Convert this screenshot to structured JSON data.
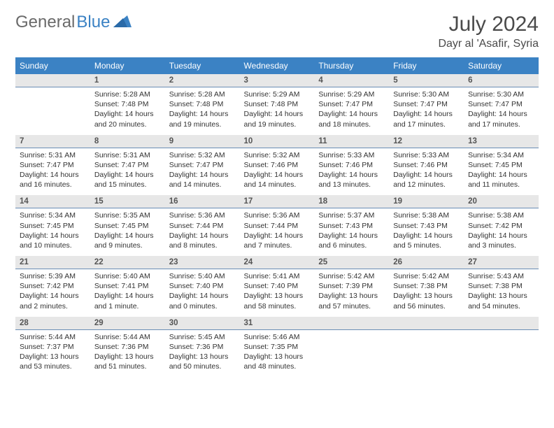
{
  "logo": {
    "text1": "General",
    "text2": "Blue"
  },
  "title": "July 2024",
  "location": "Dayr al 'Asafir, Syria",
  "colors": {
    "header_bg": "#3b82c4",
    "header_text": "#ffffff",
    "daynum_bg": "#e7e7e7",
    "border": "#6a8db5",
    "body_text": "#333333",
    "title_text": "#4a4a4a",
    "logo_gray": "#6a6a6a",
    "logo_blue": "#3b82c4"
  },
  "fonts": {
    "title_size": 30,
    "location_size": 16,
    "dayhead_size": 12,
    "daynum_size": 11.5,
    "info_size": 10.5
  },
  "day_headers": [
    "Sunday",
    "Monday",
    "Tuesday",
    "Wednesday",
    "Thursday",
    "Friday",
    "Saturday"
  ],
  "weeks": [
    [
      {
        "n": "",
        "sr": "",
        "ss": "",
        "dl": ""
      },
      {
        "n": "1",
        "sr": "Sunrise: 5:28 AM",
        "ss": "Sunset: 7:48 PM",
        "dl": "Daylight: 14 hours and 20 minutes."
      },
      {
        "n": "2",
        "sr": "Sunrise: 5:28 AM",
        "ss": "Sunset: 7:48 PM",
        "dl": "Daylight: 14 hours and 19 minutes."
      },
      {
        "n": "3",
        "sr": "Sunrise: 5:29 AM",
        "ss": "Sunset: 7:48 PM",
        "dl": "Daylight: 14 hours and 19 minutes."
      },
      {
        "n": "4",
        "sr": "Sunrise: 5:29 AM",
        "ss": "Sunset: 7:47 PM",
        "dl": "Daylight: 14 hours and 18 minutes."
      },
      {
        "n": "5",
        "sr": "Sunrise: 5:30 AM",
        "ss": "Sunset: 7:47 PM",
        "dl": "Daylight: 14 hours and 17 minutes."
      },
      {
        "n": "6",
        "sr": "Sunrise: 5:30 AM",
        "ss": "Sunset: 7:47 PM",
        "dl": "Daylight: 14 hours and 17 minutes."
      }
    ],
    [
      {
        "n": "7",
        "sr": "Sunrise: 5:31 AM",
        "ss": "Sunset: 7:47 PM",
        "dl": "Daylight: 14 hours and 16 minutes."
      },
      {
        "n": "8",
        "sr": "Sunrise: 5:31 AM",
        "ss": "Sunset: 7:47 PM",
        "dl": "Daylight: 14 hours and 15 minutes."
      },
      {
        "n": "9",
        "sr": "Sunrise: 5:32 AM",
        "ss": "Sunset: 7:47 PM",
        "dl": "Daylight: 14 hours and 14 minutes."
      },
      {
        "n": "10",
        "sr": "Sunrise: 5:32 AM",
        "ss": "Sunset: 7:46 PM",
        "dl": "Daylight: 14 hours and 14 minutes."
      },
      {
        "n": "11",
        "sr": "Sunrise: 5:33 AM",
        "ss": "Sunset: 7:46 PM",
        "dl": "Daylight: 14 hours and 13 minutes."
      },
      {
        "n": "12",
        "sr": "Sunrise: 5:33 AM",
        "ss": "Sunset: 7:46 PM",
        "dl": "Daylight: 14 hours and 12 minutes."
      },
      {
        "n": "13",
        "sr": "Sunrise: 5:34 AM",
        "ss": "Sunset: 7:45 PM",
        "dl": "Daylight: 14 hours and 11 minutes."
      }
    ],
    [
      {
        "n": "14",
        "sr": "Sunrise: 5:34 AM",
        "ss": "Sunset: 7:45 PM",
        "dl": "Daylight: 14 hours and 10 minutes."
      },
      {
        "n": "15",
        "sr": "Sunrise: 5:35 AM",
        "ss": "Sunset: 7:45 PM",
        "dl": "Daylight: 14 hours and 9 minutes."
      },
      {
        "n": "16",
        "sr": "Sunrise: 5:36 AM",
        "ss": "Sunset: 7:44 PM",
        "dl": "Daylight: 14 hours and 8 minutes."
      },
      {
        "n": "17",
        "sr": "Sunrise: 5:36 AM",
        "ss": "Sunset: 7:44 PM",
        "dl": "Daylight: 14 hours and 7 minutes."
      },
      {
        "n": "18",
        "sr": "Sunrise: 5:37 AM",
        "ss": "Sunset: 7:43 PM",
        "dl": "Daylight: 14 hours and 6 minutes."
      },
      {
        "n": "19",
        "sr": "Sunrise: 5:38 AM",
        "ss": "Sunset: 7:43 PM",
        "dl": "Daylight: 14 hours and 5 minutes."
      },
      {
        "n": "20",
        "sr": "Sunrise: 5:38 AM",
        "ss": "Sunset: 7:42 PM",
        "dl": "Daylight: 14 hours and 3 minutes."
      }
    ],
    [
      {
        "n": "21",
        "sr": "Sunrise: 5:39 AM",
        "ss": "Sunset: 7:42 PM",
        "dl": "Daylight: 14 hours and 2 minutes."
      },
      {
        "n": "22",
        "sr": "Sunrise: 5:40 AM",
        "ss": "Sunset: 7:41 PM",
        "dl": "Daylight: 14 hours and 1 minute."
      },
      {
        "n": "23",
        "sr": "Sunrise: 5:40 AM",
        "ss": "Sunset: 7:40 PM",
        "dl": "Daylight: 14 hours and 0 minutes."
      },
      {
        "n": "24",
        "sr": "Sunrise: 5:41 AM",
        "ss": "Sunset: 7:40 PM",
        "dl": "Daylight: 13 hours and 58 minutes."
      },
      {
        "n": "25",
        "sr": "Sunrise: 5:42 AM",
        "ss": "Sunset: 7:39 PM",
        "dl": "Daylight: 13 hours and 57 minutes."
      },
      {
        "n": "26",
        "sr": "Sunrise: 5:42 AM",
        "ss": "Sunset: 7:38 PM",
        "dl": "Daylight: 13 hours and 56 minutes."
      },
      {
        "n": "27",
        "sr": "Sunrise: 5:43 AM",
        "ss": "Sunset: 7:38 PM",
        "dl": "Daylight: 13 hours and 54 minutes."
      }
    ],
    [
      {
        "n": "28",
        "sr": "Sunrise: 5:44 AM",
        "ss": "Sunset: 7:37 PM",
        "dl": "Daylight: 13 hours and 53 minutes."
      },
      {
        "n": "29",
        "sr": "Sunrise: 5:44 AM",
        "ss": "Sunset: 7:36 PM",
        "dl": "Daylight: 13 hours and 51 minutes."
      },
      {
        "n": "30",
        "sr": "Sunrise: 5:45 AM",
        "ss": "Sunset: 7:36 PM",
        "dl": "Daylight: 13 hours and 50 minutes."
      },
      {
        "n": "31",
        "sr": "Sunrise: 5:46 AM",
        "ss": "Sunset: 7:35 PM",
        "dl": "Daylight: 13 hours and 48 minutes."
      },
      {
        "n": "",
        "sr": "",
        "ss": "",
        "dl": ""
      },
      {
        "n": "",
        "sr": "",
        "ss": "",
        "dl": ""
      },
      {
        "n": "",
        "sr": "",
        "ss": "",
        "dl": ""
      }
    ]
  ]
}
